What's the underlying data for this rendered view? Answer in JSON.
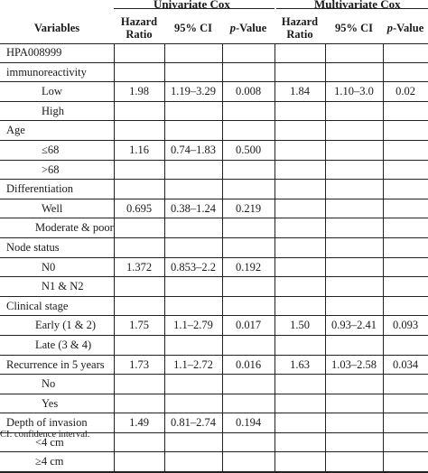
{
  "groups": {
    "univariate": "Univariate Cox",
    "multivariate": "Multivariate Cox"
  },
  "headers": {
    "variables": "Variables",
    "hazard_ratio": "Hazard Ratio",
    "ci": "95% CI",
    "p_prefix": "p",
    "p_suffix": "-Value"
  },
  "rows": [
    {
      "label": "HPA008999",
      "indent": 0,
      "hr1": "",
      "ci1": "",
      "p1": "",
      "hr2": "",
      "ci2": "",
      "p2": ""
    },
    {
      "label": "immunoreactivity",
      "indent": 0,
      "hr1": "",
      "ci1": "",
      "p1": "",
      "hr2": "",
      "ci2": "",
      "p2": ""
    },
    {
      "label": "Low",
      "indent": 1,
      "hr1": "1.98",
      "ci1": "1.19–3.29",
      "p1": "0.008",
      "hr2": "1.84",
      "ci2": "1.10–3.0",
      "p2": "0.02"
    },
    {
      "label": "High",
      "indent": 1,
      "hr1": "",
      "ci1": "",
      "p1": "",
      "hr2": "",
      "ci2": "",
      "p2": ""
    },
    {
      "label": "Age",
      "indent": 0,
      "hr1": "",
      "ci1": "",
      "p1": "",
      "hr2": "",
      "ci2": "",
      "p2": ""
    },
    {
      "label": "≤68",
      "indent": 1,
      "hr1": "1.16",
      "ci1": "0.74–1.83",
      "p1": "0.500",
      "hr2": "",
      "ci2": "",
      "p2": ""
    },
    {
      "label": ">68",
      "indent": 1,
      "hr1": "",
      "ci1": "",
      "p1": "",
      "hr2": "",
      "ci2": "",
      "p2": ""
    },
    {
      "label": "Differentiation",
      "indent": 0,
      "hr1": "",
      "ci1": "",
      "p1": "",
      "hr2": "",
      "ci2": "",
      "p2": ""
    },
    {
      "label": "Well",
      "indent": 1,
      "hr1": "0.695",
      "ci1": "0.38–1.24",
      "p1": "0.219",
      "hr2": "",
      "ci2": "",
      "p2": ""
    },
    {
      "label": "Moderate & poor",
      "indent": 2,
      "hr1": "",
      "ci1": "",
      "p1": "",
      "hr2": "",
      "ci2": "",
      "p2": ""
    },
    {
      "label": "Node status",
      "indent": 0,
      "hr1": "",
      "ci1": "",
      "p1": "",
      "hr2": "",
      "ci2": "",
      "p2": ""
    },
    {
      "label": "N0",
      "indent": 1,
      "hr1": "1.372",
      "ci1": "0.853–2.2",
      "p1": "0.192",
      "hr2": "",
      "ci2": "",
      "p2": ""
    },
    {
      "label": "N1 & N2",
      "indent": 1,
      "hr1": "",
      "ci1": "",
      "p1": "",
      "hr2": "",
      "ci2": "",
      "p2": ""
    },
    {
      "label": "Clinical stage",
      "indent": 0,
      "hr1": "",
      "ci1": "",
      "p1": "",
      "hr2": "",
      "ci2": "",
      "p2": ""
    },
    {
      "label": "Early (1 & 2)",
      "indent": 2,
      "hr1": "1.75",
      "ci1": "1.1–2.79",
      "p1": "0.017",
      "hr2": "1.50",
      "ci2": "0.93–2.41",
      "p2": "0.093"
    },
    {
      "label": "Late (3 & 4)",
      "indent": 2,
      "hr1": "",
      "ci1": "",
      "p1": "",
      "hr2": "",
      "ci2": "",
      "p2": ""
    },
    {
      "label": "Recurrence in 5 years",
      "indent": 0,
      "hr1": "1.73",
      "ci1": "1.1–2.72",
      "p1": "0.016",
      "hr2": "1.63",
      "ci2": "1.03–2.58",
      "p2": "0.034"
    },
    {
      "label": "No",
      "indent": 1,
      "hr1": "",
      "ci1": "",
      "p1": "",
      "hr2": "",
      "ci2": "",
      "p2": ""
    },
    {
      "label": "Yes",
      "indent": 1,
      "hr1": "",
      "ci1": "",
      "p1": "",
      "hr2": "",
      "ci2": "",
      "p2": ""
    },
    {
      "label": "Depth of invasion",
      "indent": 0,
      "hr1": "1.49",
      "ci1": "0.81–2.74",
      "p1": "0.194",
      "hr2": "",
      "ci2": "",
      "p2": ""
    },
    {
      "label": "<4 cm",
      "indent": 2,
      "hr1": "",
      "ci1": "",
      "p1": "",
      "hr2": "",
      "ci2": "",
      "p2": ""
    },
    {
      "label": "≥4 cm",
      "indent": 2,
      "hr1": "",
      "ci1": "",
      "p1": "",
      "hr2": "",
      "ci2": "",
      "p2": ""
    }
  ],
  "footnote": "CI: confidence interval."
}
